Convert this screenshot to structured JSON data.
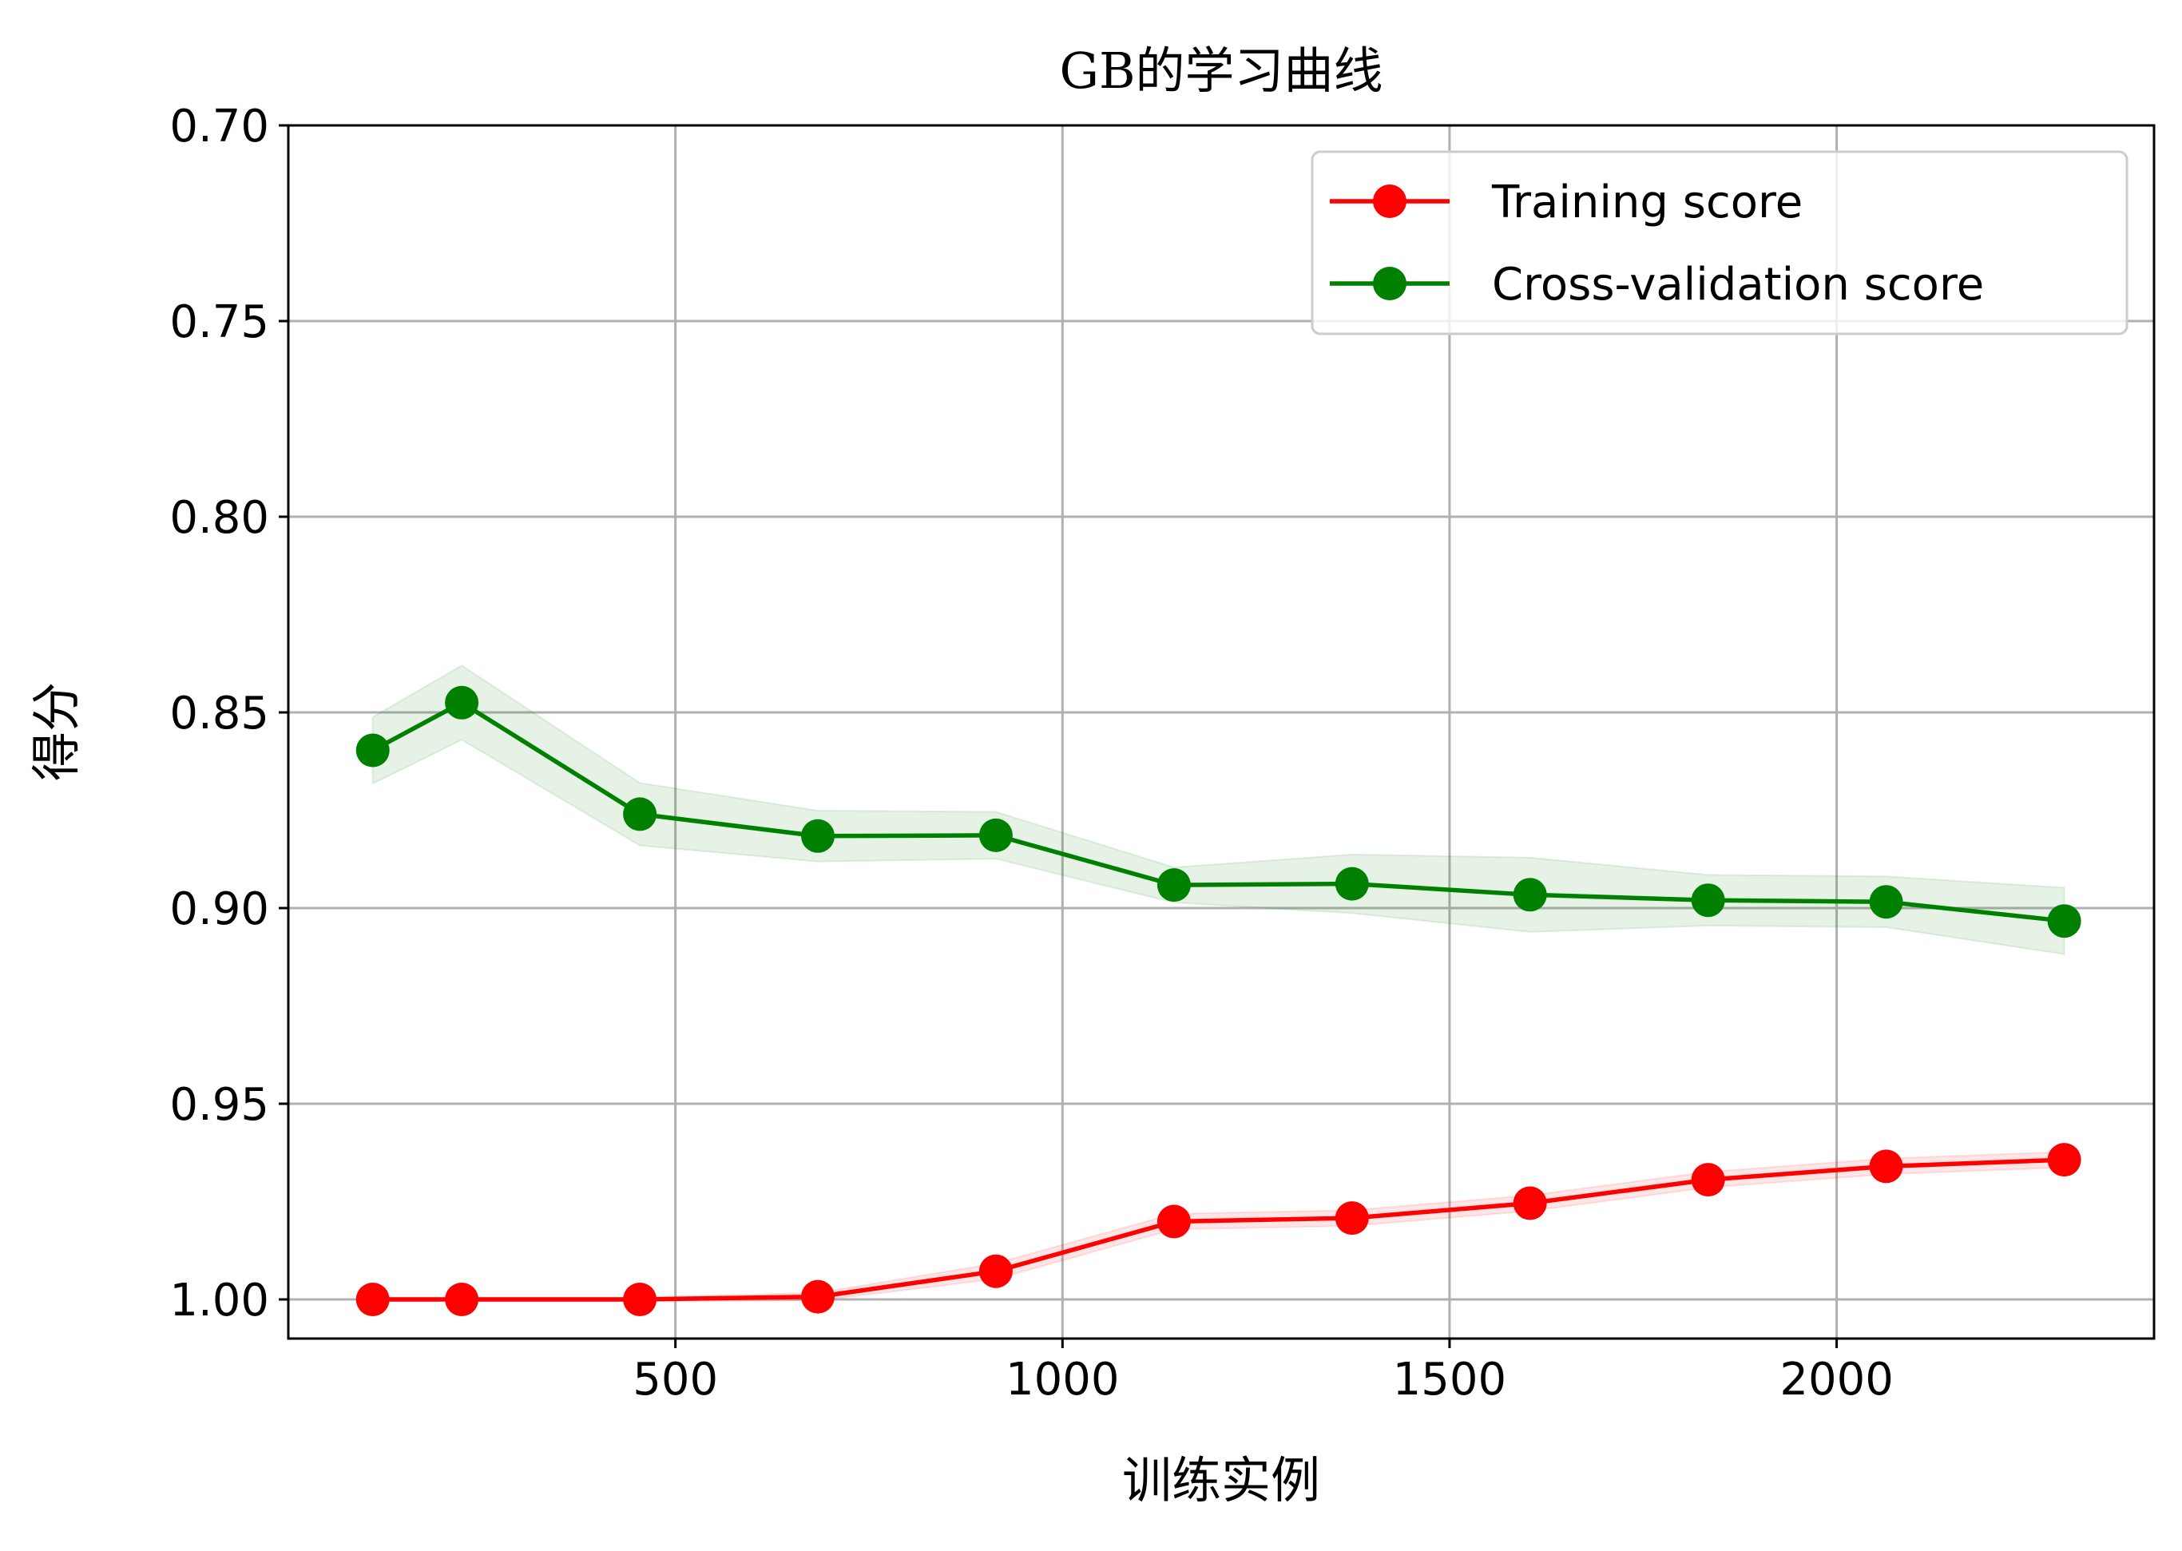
{
  "chart_data": {
    "type": "line",
    "title": "GB的学习曲线",
    "xlabel": "训练实例",
    "ylabel": "得分",
    "xlim": [
      0,
      2410
    ],
    "ylim": [
      1.01,
      0.7
    ],
    "y_inverted": true,
    "grid": true,
    "legend_position": "top-right",
    "x_ticks": [
      500,
      1000,
      1500,
      2000
    ],
    "x_tick_labels": [
      "500",
      "1000",
      "1500",
      "2000"
    ],
    "y_ticks": [
      0.7,
      0.75,
      0.8,
      0.85,
      0.9,
      0.95,
      1.0
    ],
    "y_tick_labels": [
      "0.70",
      "0.75",
      "0.80",
      "0.85",
      "0.90",
      "0.95",
      "1.00"
    ],
    "x": [
      109,
      224,
      454,
      684,
      914,
      1144,
      1374,
      1604,
      1834,
      2064,
      2294
    ],
    "series": [
      {
        "name": "Training score",
        "color": "#ff0000",
        "values": [
          1.0,
          1.0,
          1.0,
          0.9993,
          0.9928,
          0.9801,
          0.9792,
          0.9754,
          0.9694,
          0.966,
          0.9643
        ],
        "band": [
          0.0005,
          0.0005,
          0.0005,
          0.001,
          0.002,
          0.002,
          0.002,
          0.002,
          0.002,
          0.002,
          0.002
        ]
      },
      {
        "name": "Cross-validation score",
        "color": "#008000",
        "values": [
          0.8597,
          0.8475,
          0.876,
          0.8816,
          0.8814,
          0.8941,
          0.8938,
          0.8966,
          0.898,
          0.8984,
          0.9033
        ],
        "band": [
          0.0085,
          0.0095,
          0.008,
          0.0065,
          0.006,
          0.0045,
          0.0075,
          0.0095,
          0.0065,
          0.0065,
          0.0085
        ]
      }
    ]
  }
}
